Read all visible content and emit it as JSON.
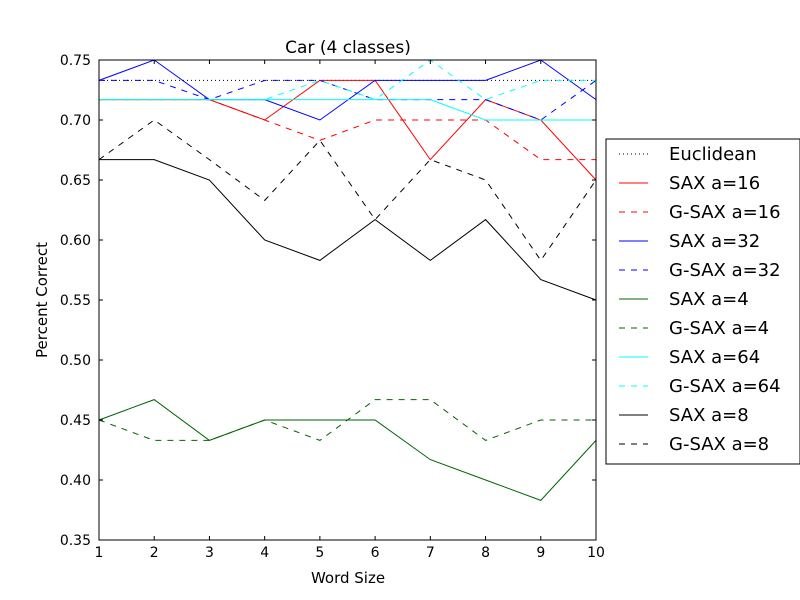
{
  "chart_data": {
    "type": "line",
    "title": "Car (4 classes)",
    "xlabel": "Word Size",
    "ylabel": "Percent Correct",
    "xlim": [
      1,
      10
    ],
    "ylim": [
      0.35,
      0.75
    ],
    "x_ticks": [
      1,
      2,
      3,
      4,
      5,
      6,
      7,
      8,
      9,
      10
    ],
    "y_ticks": [
      "0.35",
      "0.40",
      "0.45",
      "0.50",
      "0.55",
      "0.60",
      "0.65",
      "0.70",
      "0.75"
    ],
    "grid": false,
    "legend_position": "right, outside plot",
    "x": [
      1,
      2,
      3,
      4,
      5,
      6,
      7,
      8,
      9,
      10
    ],
    "series": [
      {
        "name": "Euclidean",
        "color": "#000000",
        "style": "dotted",
        "values": [
          0.733,
          0.733,
          0.733,
          0.733,
          0.733,
          0.733,
          0.733,
          0.733,
          0.733,
          0.733
        ]
      },
      {
        "name": "SAX a=16",
        "color": "#ff0000",
        "style": "solid",
        "values": [
          0.717,
          0.717,
          0.717,
          0.7,
          0.733,
          0.733,
          0.667,
          0.717,
          0.7,
          0.65
        ]
      },
      {
        "name": "G-SAX a=16",
        "color": "#ff0000",
        "style": "dashed",
        "values": [
          0.717,
          0.717,
          0.717,
          0.7,
          0.683,
          0.7,
          0.7,
          0.7,
          0.667,
          0.667
        ]
      },
      {
        "name": "SAX a=32",
        "color": "#0000ff",
        "style": "solid",
        "values": [
          0.733,
          0.75,
          0.717,
          0.717,
          0.7,
          0.733,
          0.733,
          0.733,
          0.75,
          0.717
        ]
      },
      {
        "name": "G-SAX a=32",
        "color": "#0000ff",
        "style": "dashed",
        "values": [
          0.733,
          0.733,
          0.717,
          0.733,
          0.733,
          0.717,
          0.717,
          0.717,
          0.7,
          0.733
        ]
      },
      {
        "name": "SAX a=4",
        "color": "#006400",
        "style": "solid",
        "values": [
          0.45,
          0.467,
          0.433,
          0.45,
          0.45,
          0.45,
          0.417,
          0.4,
          0.383,
          0.433
        ]
      },
      {
        "name": "G-SAX a=4",
        "color": "#006400",
        "style": "dashed",
        "values": [
          0.45,
          0.433,
          0.433,
          0.45,
          0.433,
          0.467,
          0.467,
          0.433,
          0.45,
          0.45
        ]
      },
      {
        "name": "SAX a=64",
        "color": "#00ffff",
        "style": "solid",
        "values": [
          0.717,
          0.717,
          0.717,
          0.717,
          0.717,
          0.717,
          0.717,
          0.7,
          0.7,
          0.7
        ]
      },
      {
        "name": "G-SAX a=64",
        "color": "#00ffff",
        "style": "dashed",
        "values": [
          0.717,
          0.717,
          0.717,
          0.717,
          0.733,
          0.717,
          0.75,
          0.717,
          0.733,
          0.733
        ]
      },
      {
        "name": "SAX a=8",
        "color": "#000000",
        "style": "solid",
        "values": [
          0.667,
          0.667,
          0.65,
          0.6,
          0.583,
          0.617,
          0.583,
          0.617,
          0.567,
          0.55
        ]
      },
      {
        "name": "G-SAX a=8",
        "color": "#000000",
        "style": "dashed",
        "values": [
          0.667,
          0.7,
          0.667,
          0.633,
          0.683,
          0.617,
          0.667,
          0.65,
          0.583,
          0.65
        ]
      }
    ]
  }
}
